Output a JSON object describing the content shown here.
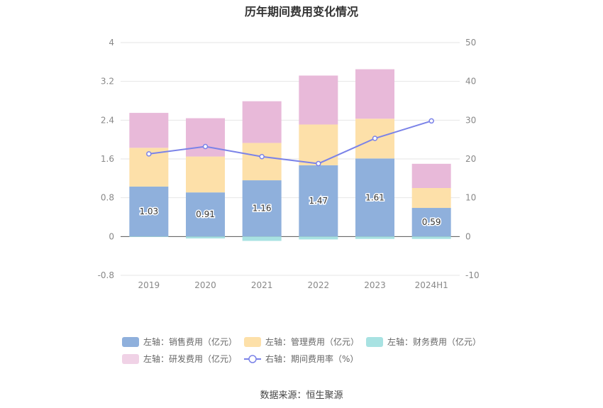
{
  "title": "历年期间费用变化情况",
  "source": "数据来源：恒生聚源",
  "chart_data": {
    "type": "bar",
    "stacked": true,
    "categories": [
      "2019",
      "2020",
      "2021",
      "2022",
      "2023",
      "2024H1"
    ],
    "left_axis": {
      "min": -0.8,
      "max": 4,
      "ticks": [
        "4",
        "3.2",
        "2.4",
        "1.6",
        "0.8",
        "0",
        "-0.8"
      ]
    },
    "right_axis": {
      "min": -10,
      "max": 50,
      "ticks": [
        "50",
        "40",
        "30",
        "20",
        "10",
        "0",
        "-10"
      ]
    },
    "series": [
      {
        "name": "左轴：销售费用（亿元）",
        "axis": "left",
        "color": "#8fb0dc",
        "values": [
          1.03,
          0.91,
          1.16,
          1.47,
          1.61,
          0.59
        ],
        "labels": [
          "1.03",
          "0.91",
          "1.16",
          "1.47",
          "1.61",
          "0.59"
        ]
      },
      {
        "name": "左轴：管理费用（亿元）",
        "axis": "left",
        "color": "#fde0a9",
        "values": [
          0.8,
          0.74,
          0.77,
          0.84,
          0.82,
          0.41
        ]
      },
      {
        "name": "左轴：财务费用（亿元）",
        "axis": "left",
        "color": "#a8e2e2",
        "values": [
          -0.01,
          -0.04,
          -0.09,
          -0.06,
          -0.05,
          -0.05
        ]
      },
      {
        "name": "左轴：研发费用（亿元）",
        "axis": "left",
        "color": "#e8b9d9",
        "values": [
          0.72,
          0.79,
          0.86,
          1.01,
          1.02,
          0.5
        ]
      },
      {
        "name": "右轴：期间费用率（%）",
        "axis": "right",
        "type": "line",
        "color": "#7b83e8",
        "values": [
          21.3,
          23.2,
          20.6,
          18.8,
          25.3,
          29.8
        ]
      }
    ],
    "grid": true,
    "legend_position": "bottom"
  }
}
